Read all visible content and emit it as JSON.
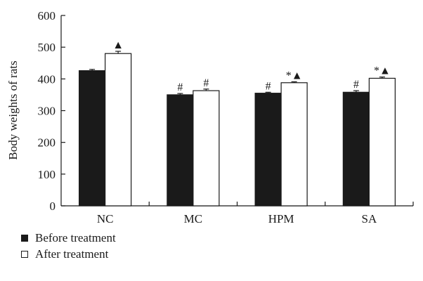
{
  "chart_data": {
    "type": "bar",
    "title": "",
    "xlabel": "",
    "ylabel": "Body weights of rats",
    "ylim": [
      0,
      600
    ],
    "yticks": [
      0,
      100,
      200,
      300,
      400,
      500,
      600
    ],
    "categories": [
      "NC",
      "MC",
      "HPM",
      "SA"
    ],
    "series": [
      {
        "name": "Before treatment",
        "color": "#1a1a1a",
        "values": [
          426,
          350,
          355,
          358
        ],
        "errors": [
          4,
          4,
          3,
          5
        ],
        "annotations": [
          "",
          "#",
          "#",
          "#"
        ]
      },
      {
        "name": "After treatment",
        "color": "#ffffff",
        "values": [
          480,
          363,
          388,
          402
        ],
        "errors": [
          7,
          5,
          3,
          4
        ],
        "annotations": [
          "▲",
          "#",
          "*▲",
          "*▲"
        ]
      }
    ],
    "grid": false,
    "legend_position": "bottom-left"
  }
}
